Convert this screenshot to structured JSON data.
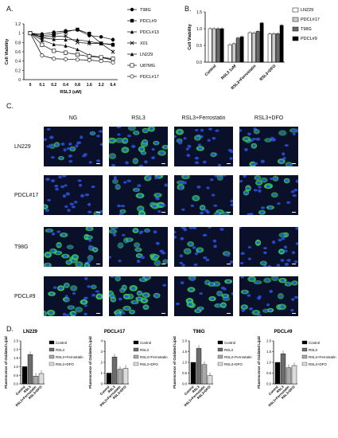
{
  "panels": {
    "A": "A.",
    "B": "B.",
    "C": "C.",
    "D": "D."
  },
  "chart_data": [
    {
      "id": "A",
      "type": "line",
      "xlabel": "RSL3 (uM)",
      "ylabel": "Cell Viability",
      "categories": [
        "0",
        "0.1",
        "0.2",
        "0.4",
        "0.8",
        "1.6",
        "3.2",
        "6.4"
      ],
      "ylim": [
        0,
        1.2
      ],
      "yticks": [
        "0",
        "0.2",
        "0.4",
        "0.6",
        "0.8",
        "1",
        "1.2"
      ],
      "series": [
        {
          "name": "T98G",
          "marker": "circle-filled",
          "values": [
            1.0,
            0.98,
            1.02,
            1.05,
            1.07,
            0.95,
            0.92,
            0.86
          ]
        },
        {
          "name": "PDCL#9",
          "marker": "square-filled",
          "values": [
            1.0,
            0.95,
            0.97,
            1.03,
            1.08,
            0.99,
            0.78,
            0.75
          ]
        },
        {
          "name": "PDCL#13",
          "marker": "triangle-filled",
          "values": [
            1.0,
            0.9,
            0.87,
            0.86,
            0.86,
            0.82,
            0.78,
            0.76
          ]
        },
        {
          "name": "X01",
          "marker": "x",
          "values": [
            1.0,
            0.92,
            0.93,
            0.94,
            0.8,
            0.78,
            0.78,
            0.6
          ]
        },
        {
          "name": "LN229",
          "marker": "triangle-filled",
          "values": [
            1.0,
            0.85,
            0.76,
            0.73,
            0.65,
            0.52,
            0.48,
            0.42
          ]
        },
        {
          "name": "U87MG",
          "marker": "square-open",
          "values": [
            1.0,
            0.75,
            0.62,
            0.58,
            0.54,
            0.5,
            0.48,
            0.45
          ]
        },
        {
          "name": "PDCL#17",
          "marker": "circle-open",
          "values": [
            1.0,
            0.52,
            0.45,
            0.44,
            0.43,
            0.42,
            0.4,
            0.37
          ]
        }
      ]
    },
    {
      "id": "B",
      "type": "bar",
      "ylabel": "Cell Viability",
      "categories": [
        "Control",
        "RSL3 1uM",
        "RSL3+Ferrostatin",
        "RSL3+DFO"
      ],
      "ylim": [
        0,
        1.5
      ],
      "yticks": [
        "0.0",
        "0.5",
        "1.0",
        "1.5"
      ],
      "series": [
        {
          "name": "LN229",
          "color": "#ffffff",
          "values": [
            1.0,
            0.52,
            0.88,
            0.84
          ]
        },
        {
          "name": "PDCL#17",
          "color": "#cfcfcf",
          "values": [
            1.0,
            0.55,
            0.87,
            0.85
          ]
        },
        {
          "name": "T98G",
          "color": "#6b6b6b",
          "values": [
            1.0,
            0.72,
            0.92,
            0.85
          ]
        },
        {
          "name": "PDCL#9",
          "color": "#000000",
          "values": [
            1.0,
            0.76,
            1.17,
            1.1
          ]
        }
      ]
    },
    {
      "id": "D1",
      "type": "bar",
      "title": "LN229",
      "ylabel": "Fluorescence of Oxidated Lipid",
      "categories": [
        "Control",
        "RSL3",
        "RSL3+Ferrostatin",
        "RSL3+DFO"
      ],
      "ylim": [
        0,
        2.5
      ],
      "yticks": [
        "0.0",
        "0.5",
        "1.0",
        "1.5",
        "2.0",
        "2.5"
      ],
      "values": [
        1.0,
        1.7,
        0.45,
        0.6
      ],
      "colors": [
        "#000000",
        "#6b6b6b",
        "#a9a9a9",
        "#dcdcdc"
      ]
    },
    {
      "id": "D2",
      "type": "bar",
      "title": "PDCL#17",
      "ylabel": "Fluorescence of Oxidated Lipid",
      "categories": [
        "Control",
        "RSL3",
        "RSL3+Ferrostatin",
        "RSL3+DFO"
      ],
      "ylim": [
        0,
        4
      ],
      "yticks": [
        "0",
        "1",
        "2",
        "3",
        "4"
      ],
      "values": [
        1.0,
        2.5,
        1.35,
        1.45
      ],
      "colors": [
        "#000000",
        "#6b6b6b",
        "#a9a9a9",
        "#dcdcdc"
      ]
    },
    {
      "id": "D3",
      "type": "bar",
      "title": "T98G",
      "ylabel": "Fluorescence of Oxidated Lipid",
      "categories": [
        "Control",
        "RSL3",
        "RSL3+Ferrostatin",
        "RSL3+DFO"
      ],
      "ylim": [
        0,
        2.0
      ],
      "yticks": [
        "0.0",
        "0.5",
        "1.0",
        "1.5",
        "2.0"
      ],
      "values": [
        1.0,
        1.65,
        0.9,
        0.38
      ],
      "colors": [
        "#000000",
        "#6b6b6b",
        "#a9a9a9",
        "#dcdcdc"
      ]
    },
    {
      "id": "D4",
      "type": "bar",
      "title": "PDCL#9",
      "ylabel": "Fluorescence of Oxidated Lipid",
      "categories": [
        "Control",
        "RSL3",
        "RSL3+Ferrostatin",
        "RSL3+DFO"
      ],
      "ylim": [
        0,
        2.0
      ],
      "yticks": [
        "0.0",
        "0.5",
        "1.0",
        "1.5",
        "2.0"
      ],
      "values": [
        1.0,
        1.4,
        0.75,
        0.85
      ],
      "colors": [
        "#000000",
        "#6b6b6b",
        "#a9a9a9",
        "#dcdcdc"
      ]
    }
  ],
  "microscopy": {
    "columns": [
      "NG",
      "RSL3",
      "RSL3+Ferrostatin",
      "RSL3+DFO"
    ],
    "rows": [
      {
        "label": "LN229",
        "green": [
          0.15,
          0.5,
          0.1,
          0.45
        ]
      },
      {
        "label": "PDCL#17",
        "green": [
          0.1,
          0.35,
          0.2,
          0.35
        ]
      },
      {
        "label": "T98G",
        "green": [
          0.7,
          0.6,
          0.1,
          0.15
        ]
      },
      {
        "label": "PDCL#9",
        "green": [
          0.6,
          0.7,
          0.55,
          0.4
        ]
      }
    ]
  },
  "colors": {
    "nucleus": "#2a4fd6",
    "lipid": "#37d05a",
    "background": "#0a0f2a"
  }
}
